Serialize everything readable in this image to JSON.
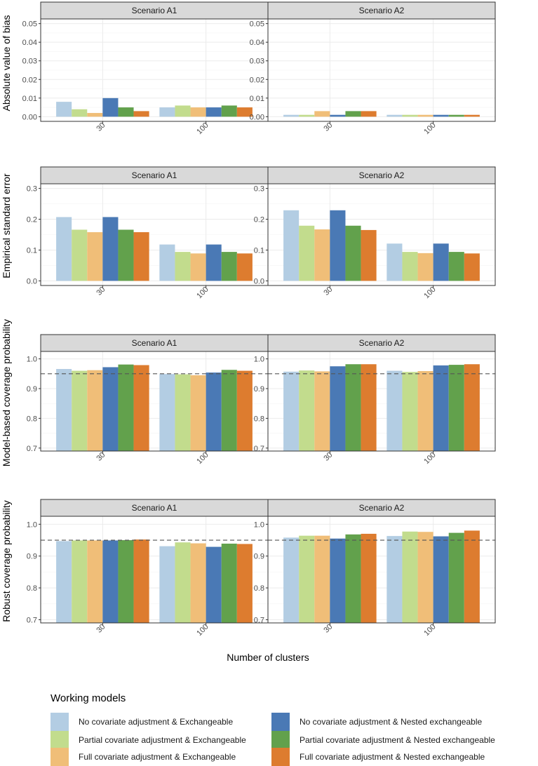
{
  "chart_data": {
    "type": "bar",
    "xlabel": "Number of clusters",
    "categories": [
      "30",
      "100"
    ],
    "scenarios": [
      "Scenario A1",
      "Scenario A2"
    ],
    "legend": {
      "title": "Working models",
      "entries": [
        {
          "name": "No covariate adjustment & Exchangeable",
          "color": "#b3cde3"
        },
        {
          "name": "Partial covariate adjustment & Exchangeable",
          "color": "#c2dc8d"
        },
        {
          "name": "Full covariate adjustment & Exchangeable",
          "color": "#f0be78"
        },
        {
          "name": "No covariate adjustment & Nested exchangeable",
          "color": "#4a79b5"
        },
        {
          "name": "Partial covariate adjustment & Nested exchangeable",
          "color": "#62a14c"
        },
        {
          "name": "Full covariate adjustment & Nested exchangeable",
          "color": "#dd7c2f"
        }
      ]
    },
    "rows": [
      {
        "ylabel": "Absolute value of bias",
        "ylim": [
          -0.0025,
          0.0525
        ],
        "yticks": [
          0.0,
          0.01,
          0.02,
          0.03,
          0.04,
          0.05
        ],
        "tick_labels": [
          "0.00",
          "0.01",
          "0.02",
          "0.03",
          "0.04",
          "0.05"
        ],
        "reference": null,
        "panels": [
          {
            "scenario": "Scenario A1",
            "values": [
              [
                0.008,
                0.004,
                0.002,
                0.01,
                0.005,
                0.003
              ],
              [
                0.005,
                0.006,
                0.005,
                0.005,
                0.006,
                0.005
              ]
            ]
          },
          {
            "scenario": "Scenario A2",
            "values": [
              [
                0.001,
                0.001,
                0.003,
                0.001,
                0.003,
                0.003
              ],
              [
                0.001,
                0.001,
                0.001,
                0.001,
                0.001,
                0.001
              ]
            ]
          }
        ]
      },
      {
        "ylabel": "Empirical standard error",
        "ylim": [
          -0.015,
          0.315
        ],
        "yticks": [
          0.0,
          0.1,
          0.2,
          0.3
        ],
        "tick_labels": [
          "0.0",
          "0.1",
          "0.2",
          "0.3"
        ],
        "reference": null,
        "panels": [
          {
            "scenario": "Scenario A1",
            "values": [
              [
                0.207,
                0.166,
                0.158,
                0.207,
                0.166,
                0.158
              ],
              [
                0.118,
                0.094,
                0.089,
                0.118,
                0.094,
                0.089
              ]
            ]
          },
          {
            "scenario": "Scenario A2",
            "values": [
              [
                0.229,
                0.179,
                0.167,
                0.229,
                0.179,
                0.165
              ],
              [
                0.121,
                0.094,
                0.09,
                0.121,
                0.094,
                0.089
              ]
            ]
          }
        ]
      },
      {
        "ylabel": "Model-based coverage probability",
        "ylim": [
          0.69,
          1.025
        ],
        "yticks": [
          0.7,
          0.8,
          0.9,
          1.0
        ],
        "tick_labels": [
          "0.7",
          "0.8",
          "0.9",
          "1.0"
        ],
        "reference": 0.95,
        "panels": [
          {
            "scenario": "Scenario A1",
            "values": [
              [
                0.966,
                0.96,
                0.962,
                0.972,
                0.981,
                0.979
              ],
              [
                0.949,
                0.948,
                0.945,
                0.954,
                0.963,
                0.96
              ]
            ]
          },
          {
            "scenario": "Scenario A2",
            "values": [
              [
                0.957,
                0.961,
                0.958,
                0.975,
                0.982,
                0.982
              ],
              [
                0.96,
                0.956,
                0.959,
                0.978,
                0.98,
                0.982
              ]
            ]
          }
        ]
      },
      {
        "ylabel": "Robust coverage probability",
        "ylim": [
          0.69,
          1.025
        ],
        "yticks": [
          0.7,
          0.8,
          0.9,
          1.0
        ],
        "tick_labels": [
          "0.7",
          "0.8",
          "0.9",
          "1.0"
        ],
        "reference": 0.95,
        "panels": [
          {
            "scenario": "Scenario A1",
            "values": [
              [
                0.947,
                0.949,
                0.949,
                0.949,
                0.95,
                0.952
              ],
              [
                0.931,
                0.943,
                0.94,
                0.929,
                0.939,
                0.938
              ]
            ]
          },
          {
            "scenario": "Scenario A2",
            "values": [
              [
                0.958,
                0.964,
                0.964,
                0.955,
                0.968,
                0.97
              ],
              [
                0.963,
                0.977,
                0.976,
                0.962,
                0.973,
                0.98
              ]
            ]
          }
        ]
      }
    ]
  }
}
